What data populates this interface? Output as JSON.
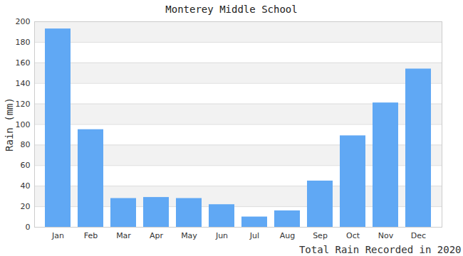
{
  "chart_data": {
    "type": "bar",
    "title": "Monterey Middle School",
    "x_label": "Total Rain Recorded in 2020",
    "y_label": "Rain (mm)",
    "categories": [
      "Jan",
      "Feb",
      "Mar",
      "Apr",
      "May",
      "Jun",
      "Jul",
      "Aug",
      "Sep",
      "Oct",
      "Nov",
      "Dec"
    ],
    "values": [
      193,
      95,
      28,
      29,
      28,
      22,
      10,
      16,
      45,
      89,
      121,
      154
    ],
    "color": "#60a8f4",
    "ylim": [
      0,
      200
    ],
    "yticks": [
      0,
      20,
      40,
      60,
      80,
      100,
      120,
      140,
      160,
      180,
      200
    ],
    "grid": true
  }
}
